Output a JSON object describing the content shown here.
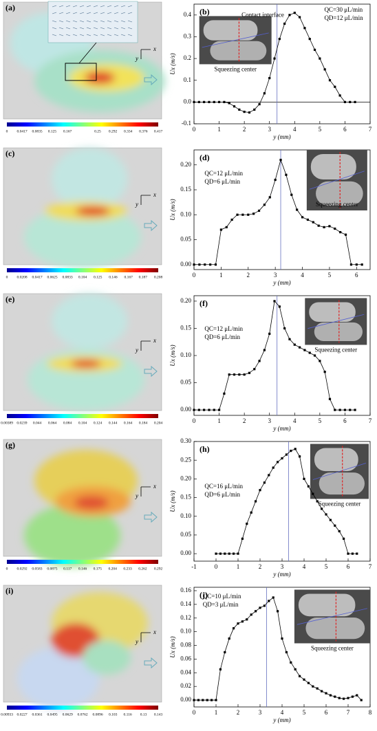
{
  "fields": [
    {
      "label": "(a)",
      "axis_x": "x",
      "axis_y": "y",
      "colorbar": [
        0,
        0.0417,
        0.0835,
        0.125,
        0.167,
        0.25,
        0.292,
        0.334,
        0.376,
        0.417
      ]
    },
    {
      "label": "(c)",
      "axis_x": "x",
      "axis_y": "y",
      "colorbar": [
        0,
        0.0208,
        0.0417,
        0.0625,
        0.0833,
        0.104,
        0.125,
        0.146,
        0.167,
        0.187,
        0.208
      ]
    },
    {
      "label": "(e)",
      "axis_x": "x",
      "axis_y": "y",
      "colorbar": [
        0.00389,
        0.0239,
        0.044,
        0.064,
        0.084,
        0.104,
        0.124,
        0.144,
        0.164,
        0.184,
        0.204
      ]
    },
    {
      "label": "(g)",
      "axis_x": "x",
      "axis_y": "y",
      "colorbar": [
        0,
        0.0292,
        0.0583,
        0.0875,
        0.117,
        0.146,
        0.175,
        0.204,
        0.233,
        0.262,
        0.292
      ]
    },
    {
      "label": "(i)",
      "axis_x": "x",
      "axis_y": "y",
      "colorbar": [
        0.00933,
        0.0227,
        0.0361,
        0.0495,
        0.0629,
        0.0762,
        0.0896,
        0.103,
        0.116,
        0.13,
        0.143
      ]
    }
  ],
  "chart_data": [
    {
      "type": "line",
      "label": "(b)",
      "xlabel": "y (mm)",
      "ylabel": "Ux (m/s)",
      "note": "Contact interface",
      "q_c": "QC=30 μL/min",
      "q_d": "QD=12 μL/min",
      "inset_caption": "Squeezing center",
      "marker_x": 3.3,
      "zero_line": true,
      "xlim": [
        0,
        7
      ],
      "xticks": [
        0,
        1,
        2,
        3,
        4,
        5,
        6,
        7
      ],
      "ylim": [
        -0.1,
        0.45
      ],
      "yticks": [
        -0.1,
        {
          "value": 0,
          "label": "0.0"
        },
        0.1,
        0.2,
        0.3,
        0.4
      ],
      "series": [
        {
          "color": "#000000",
          "x": [
            0,
            0.2,
            0.4,
            0.6,
            0.8,
            1.0,
            1.2,
            1.4,
            1.6,
            1.8,
            2.0,
            2.2,
            2.4,
            2.6,
            2.8,
            3.0,
            3.2,
            3.4,
            3.6,
            3.8,
            4.0,
            4.2,
            4.4,
            4.6,
            4.8,
            5.0,
            5.2,
            5.4,
            5.6,
            5.8,
            6.0,
            6.2,
            6.4
          ],
          "values": [
            0,
            0,
            0,
            0,
            0,
            0,
            0,
            -0.005,
            -0.02,
            -0.035,
            -0.045,
            -0.048,
            -0.035,
            -0.01,
            0.04,
            0.11,
            0.2,
            0.29,
            0.36,
            0.4,
            0.41,
            0.39,
            0.34,
            0.29,
            0.24,
            0.2,
            0.15,
            0.1,
            0.07,
            0.03,
            0,
            0,
            0
          ]
        }
      ]
    },
    {
      "type": "line",
      "label": "(d)",
      "xlabel": "y (mm)",
      "ylabel": "Ux (m/s)",
      "q_c": "QC=12  μL/min",
      "q_d": "QD=6 μL/min",
      "inset_caption": "Squeezing center",
      "marker_x": 3.2,
      "xlim": [
        0,
        6.5
      ],
      "xticks": [
        0,
        1,
        2,
        3,
        4,
        5,
        6
      ],
      "ylim": [
        -0.01,
        0.23
      ],
      "yticks": [
        {
          "value": 0,
          "label": "0.00"
        },
        0.05,
        {
          "value": 0.1,
          "label": "0.10"
        },
        0.15,
        {
          "value": 0.2,
          "label": "0.20"
        }
      ],
      "series": [
        {
          "color": "#000000",
          "x": [
            0,
            0.2,
            0.4,
            0.6,
            0.8,
            1.0,
            1.2,
            1.4,
            1.6,
            1.8,
            2.0,
            2.2,
            2.4,
            2.6,
            2.8,
            3.0,
            3.2,
            3.4,
            3.6,
            3.8,
            4.0,
            4.2,
            4.4,
            4.6,
            4.8,
            5.0,
            5.2,
            5.4,
            5.6,
            5.8,
            6.0,
            6.2
          ],
          "values": [
            0,
            0,
            0,
            0,
            0,
            0.07,
            0.075,
            0.09,
            0.1,
            0.1,
            0.1,
            0.102,
            0.108,
            0.12,
            0.135,
            0.17,
            0.21,
            0.18,
            0.14,
            0.11,
            0.095,
            0.09,
            0.085,
            0.078,
            0.075,
            0.077,
            0.072,
            0.065,
            0.06,
            0,
            0,
            0
          ]
        }
      ]
    },
    {
      "type": "line",
      "label": "(f)",
      "xlabel": "y (mm)",
      "ylabel": "Ux (m/s)",
      "q_c": "QC=12 μL/min",
      "q_d": "QD=6 μL/min",
      "inset_caption": "Squeezing center",
      "marker_x": 3.3,
      "xlim": [
        0,
        7
      ],
      "xticks": [
        0,
        1,
        2,
        3,
        4,
        5,
        6,
        7
      ],
      "ylim": [
        -0.01,
        0.21
      ],
      "yticks": [
        {
          "value": 0,
          "label": "0.00"
        },
        0.05,
        {
          "value": 0.1,
          "label": "0.10"
        },
        0.15,
        {
          "value": 0.2,
          "label": "0.20"
        }
      ],
      "series": [
        {
          "color": "#000000",
          "x": [
            0,
            0.2,
            0.4,
            0.6,
            0.8,
            1.0,
            1.2,
            1.4,
            1.6,
            1.8,
            2.0,
            2.2,
            2.4,
            2.6,
            2.8,
            3.0,
            3.2,
            3.4,
            3.6,
            3.8,
            4.0,
            4.2,
            4.4,
            4.6,
            4.8,
            5.0,
            5.2,
            5.4,
            5.6,
            5.8,
            6.0,
            6.2,
            6.4
          ],
          "values": [
            0,
            0,
            0,
            0,
            0,
            0,
            0.03,
            0.065,
            0.065,
            0.065,
            0.065,
            0.068,
            0.075,
            0.09,
            0.11,
            0.14,
            0.2,
            0.19,
            0.15,
            0.13,
            0.12,
            0.115,
            0.11,
            0.105,
            0.1,
            0.09,
            0.07,
            0.02,
            0,
            0,
            0,
            0,
            0
          ]
        }
      ]
    },
    {
      "type": "line",
      "label": "(h)",
      "xlabel": "y (mm)",
      "ylabel": "Ux (m/s)",
      "q_c": "QC=16 μL/min",
      "q_d": "QD=6 μL/min",
      "inset_caption": "Squeezing center",
      "marker_x": 3.3,
      "xlim": [
        -1,
        7
      ],
      "xticks": [
        -1,
        0,
        1,
        2,
        3,
        4,
        5,
        6,
        7
      ],
      "ylim": [
        -0.02,
        0.3
      ],
      "yticks": [
        {
          "value": 0,
          "label": "0.00"
        },
        0.05,
        {
          "value": 0.1,
          "label": "0.10"
        },
        0.15,
        {
          "value": 0.2,
          "label": "0.20"
        },
        0.25,
        {
          "value": 0.3,
          "label": "0.30"
        }
      ],
      "series": [
        {
          "color": "#000000",
          "x": [
            0,
            0.2,
            0.4,
            0.6,
            0.8,
            1.0,
            1.2,
            1.4,
            1.6,
            1.8,
            2.0,
            2.2,
            2.4,
            2.6,
            2.8,
            3.0,
            3.2,
            3.4,
            3.6,
            3.8,
            4.0,
            4.2,
            4.4,
            4.6,
            4.8,
            5.0,
            5.2,
            5.4,
            5.6,
            5.8,
            6.0,
            6.2,
            6.4
          ],
          "values": [
            0,
            0,
            0,
            0,
            0,
            0,
            0.04,
            0.08,
            0.11,
            0.14,
            0.17,
            0.19,
            0.21,
            0.23,
            0.245,
            0.255,
            0.265,
            0.275,
            0.28,
            0.26,
            0.2,
            0.18,
            0.16,
            0.14,
            0.12,
            0.105,
            0.09,
            0.075,
            0.06,
            0.04,
            0,
            0,
            0
          ]
        }
      ]
    },
    {
      "type": "line",
      "label": "(j)",
      "xlabel": "y (mm)",
      "ylabel": "Ux (m/s)",
      "q_c": "QC=10 μL/min",
      "q_d": "QD=3  μL/min",
      "inset_caption": "Squeezing center",
      "marker_x": 3.3,
      "xlim": [
        0,
        8
      ],
      "xticks": [
        0,
        1,
        2,
        3,
        4,
        5,
        6,
        7,
        8
      ],
      "ylim": [
        -0.01,
        0.165
      ],
      "yticks": [
        {
          "value": 0,
          "label": "0.00"
        },
        0.02,
        0.04,
        0.06,
        0.08,
        {
          "value": 0.1,
          "label": "0.10"
        },
        0.12,
        0.14,
        0.16
      ],
      "series": [
        {
          "color": "#000000",
          "x": [
            0,
            0.2,
            0.4,
            0.6,
            0.8,
            1.0,
            1.2,
            1.4,
            1.6,
            1.8,
            2.0,
            2.2,
            2.4,
            2.6,
            2.8,
            3.0,
            3.2,
            3.4,
            3.6,
            3.8,
            4.0,
            4.2,
            4.4,
            4.6,
            4.8,
            5.0,
            5.2,
            5.4,
            5.6,
            5.8,
            6.0,
            6.2,
            6.4,
            6.6,
            6.8,
            7.0,
            7.2,
            7.4,
            7.6
          ],
          "values": [
            0,
            0,
            0,
            0,
            0,
            0,
            0.045,
            0.07,
            0.09,
            0.105,
            0.112,
            0.115,
            0.118,
            0.125,
            0.13,
            0.135,
            0.138,
            0.145,
            0.15,
            0.13,
            0.09,
            0.07,
            0.055,
            0.045,
            0.035,
            0.03,
            0.025,
            0.02,
            0.017,
            0.013,
            0.01,
            0.007,
            0.005,
            0.003,
            0.002,
            0.003,
            0.005,
            0.007,
            0
          ]
        }
      ]
    }
  ]
}
